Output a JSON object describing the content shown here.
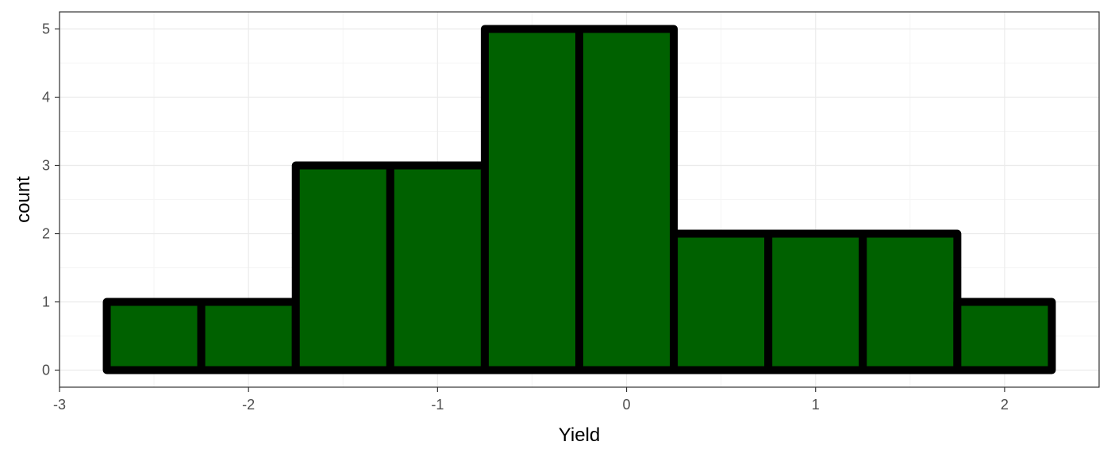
{
  "chart_data": {
    "type": "bar",
    "subtype": "histogram",
    "xlabel": "Yield",
    "ylabel": "count",
    "xlim": [
      -3,
      2.5
    ],
    "ylim": [
      -0.25,
      5.25
    ],
    "xticks": [
      -3,
      -2,
      -1,
      0,
      1,
      2
    ],
    "yticks": [
      0,
      1,
      2,
      3,
      4,
      5
    ],
    "grid": true,
    "bin_width": 0.5,
    "bins": [
      {
        "x0": -2.75,
        "x1": -2.25,
        "count": 1
      },
      {
        "x0": -2.25,
        "x1": -1.75,
        "count": 1
      },
      {
        "x0": -1.75,
        "x1": -1.25,
        "count": 3
      },
      {
        "x0": -1.25,
        "x1": -0.75,
        "count": 3
      },
      {
        "x0": -0.75,
        "x1": -0.25,
        "count": 5
      },
      {
        "x0": -0.25,
        "x1": 0.25,
        "count": 5
      },
      {
        "x0": 0.25,
        "x1": 0.75,
        "count": 2
      },
      {
        "x0": 0.75,
        "x1": 1.25,
        "count": 2
      },
      {
        "x0": 1.25,
        "x1": 1.75,
        "count": 2
      },
      {
        "x0": 1.75,
        "x1": 2.25,
        "count": 1
      }
    ],
    "colors": {
      "fill": "#006100",
      "outline": "#000000",
      "grid_major": "#ebebeb",
      "grid_minor": "#f5f5f5",
      "panel_border": "#333333",
      "tick_label": "#4d4d4d"
    }
  }
}
